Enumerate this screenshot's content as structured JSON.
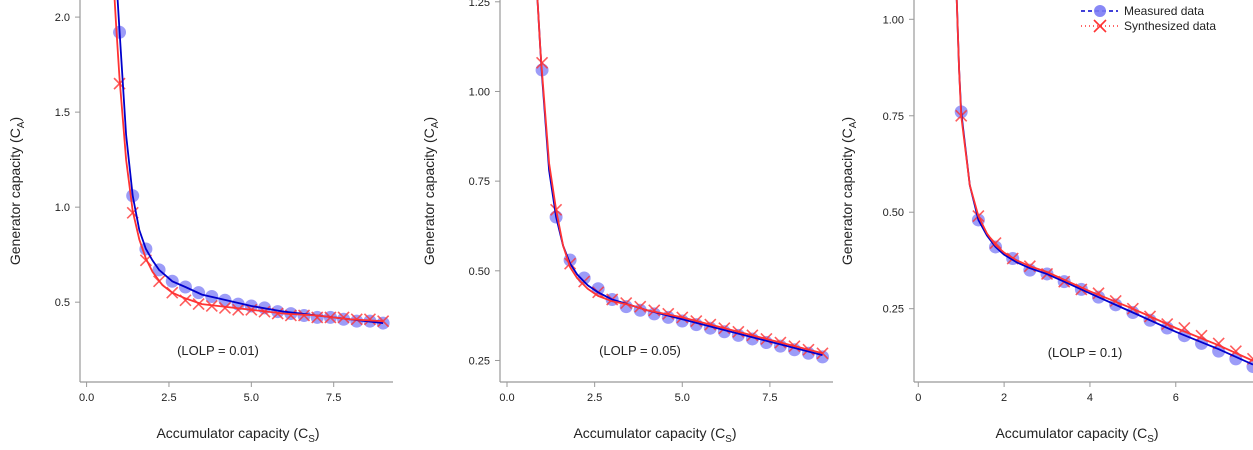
{
  "colors": {
    "measured_fit": "#0000cc",
    "measured_points": "#7b7bf5",
    "synthesized": "#ff3333",
    "axis": "#999999"
  },
  "legend": {
    "placement": "top-right",
    "entries": [
      "Measured data",
      "Synthesized data"
    ]
  },
  "chart_data": [
    {
      "type": "scatter",
      "xlabel": "Accumulator capacity (C",
      "xlabel_sub": "S",
      "xlabel_end": ")",
      "ylabel": "Generator capacity (C",
      "ylabel_sub": "A",
      "ylabel_end": ")",
      "annotation": "(LOLP = 0.01)",
      "xlim": [
        -0.2,
        9.3
      ],
      "ylim": [
        0.08,
        2.09
      ],
      "xticks": [
        0,
        2.5,
        5,
        7.5
      ],
      "xtick_labels": [
        "0.0",
        "2.5",
        "5.0",
        "7.5"
      ],
      "yticks": [
        0.5,
        1.0,
        1.5,
        2.0
      ],
      "ytick_labels": [
        "0.5",
        "1.0",
        "1.5",
        "2.0"
      ],
      "series": [
        {
          "name": "Measured data",
          "x": [
            1.0,
            1.4,
            1.8,
            2.2,
            2.6,
            3.0,
            3.4,
            3.8,
            4.2,
            4.6,
            5.0,
            5.4,
            5.8,
            6.2,
            6.6,
            7.0,
            7.4,
            7.8,
            8.2,
            8.6,
            9.0
          ],
          "y": [
            1.92,
            1.06,
            0.78,
            0.67,
            0.61,
            0.58,
            0.55,
            0.53,
            0.51,
            0.49,
            0.48,
            0.47,
            0.45,
            0.44,
            0.43,
            0.42,
            0.42,
            0.41,
            0.4,
            0.4,
            0.39
          ],
          "fit_x": [
            0.85,
            1.0,
            1.2,
            1.4,
            1.6,
            1.8,
            2.0,
            2.2,
            2.6,
            3.0,
            3.5,
            4.0,
            5.0,
            6.0,
            7.0,
            8.0,
            9.0
          ],
          "fit_y": [
            2.35,
            1.93,
            1.38,
            1.06,
            0.88,
            0.78,
            0.72,
            0.67,
            0.61,
            0.58,
            0.54,
            0.52,
            0.48,
            0.45,
            0.43,
            0.41,
            0.39
          ]
        },
        {
          "name": "Synthesized data",
          "x": [
            1.0,
            1.4,
            1.8,
            2.2,
            2.6,
            3.0,
            3.4,
            3.8,
            4.2,
            4.6,
            5.0,
            5.4,
            5.8,
            6.2,
            6.6,
            7.0,
            7.4,
            7.8,
            8.2,
            8.6,
            9.0
          ],
          "y": [
            1.65,
            0.97,
            0.72,
            0.61,
            0.55,
            0.51,
            0.49,
            0.48,
            0.47,
            0.46,
            0.46,
            0.45,
            0.44,
            0.43,
            0.43,
            0.42,
            0.42,
            0.42,
            0.41,
            0.41,
            0.4
          ],
          "fit_x": [
            0.78,
            0.9,
            1.0,
            1.2,
            1.4,
            1.6,
            1.8,
            2.0,
            2.3,
            2.6,
            3.0,
            3.5,
            4.0,
            5.0,
            6.0,
            7.0,
            8.0,
            9.0
          ],
          "fit_y": [
            2.3,
            1.95,
            1.68,
            1.25,
            0.98,
            0.83,
            0.73,
            0.66,
            0.59,
            0.55,
            0.52,
            0.49,
            0.48,
            0.46,
            0.44,
            0.43,
            0.41,
            0.4
          ]
        }
      ]
    },
    {
      "type": "scatter",
      "xlabel": "Accumulator capacity (C",
      "xlabel_sub": "S",
      "xlabel_end": ")",
      "ylabel": "Generator capacity (C",
      "ylabel_sub": "A",
      "ylabel_end": ")",
      "annotation": "(LOLP = 0.05)",
      "xlim": [
        -0.2,
        9.3
      ],
      "ylim": [
        0.19,
        1.255
      ],
      "xticks": [
        0,
        2.5,
        5,
        7.5
      ],
      "xtick_labels": [
        "0.0",
        "2.5",
        "5.0",
        "7.5"
      ],
      "yticks": [
        0.25,
        0.5,
        0.75,
        1.0,
        1.25
      ],
      "ytick_labels": [
        "0.25",
        "0.50",
        "0.75",
        "1.00",
        "1.25"
      ],
      "series": [
        {
          "name": "Measured data",
          "x": [
            1.0,
            1.4,
            1.8,
            2.2,
            2.6,
            3.0,
            3.4,
            3.8,
            4.2,
            4.6,
            5.0,
            5.4,
            5.8,
            6.2,
            6.6,
            7.0,
            7.4,
            7.8,
            8.2,
            8.6,
            9.0
          ],
          "y": [
            1.06,
            0.65,
            0.53,
            0.48,
            0.45,
            0.42,
            0.4,
            0.39,
            0.38,
            0.37,
            0.36,
            0.35,
            0.34,
            0.33,
            0.32,
            0.31,
            0.3,
            0.29,
            0.28,
            0.27,
            0.26
          ],
          "fit_x": [
            0.86,
            0.95,
            1.0,
            1.2,
            1.4,
            1.6,
            1.8,
            2.0,
            2.3,
            2.6,
            3.0,
            3.5,
            4.0,
            5.0,
            6.0,
            7.0,
            8.0,
            9.0
          ],
          "fit_y": [
            1.27,
            1.12,
            1.04,
            0.78,
            0.65,
            0.57,
            0.52,
            0.49,
            0.46,
            0.44,
            0.42,
            0.405,
            0.39,
            0.365,
            0.34,
            0.315,
            0.29,
            0.265
          ]
        },
        {
          "name": "Synthesized data",
          "x": [
            1.0,
            1.4,
            1.8,
            2.2,
            2.6,
            3.0,
            3.4,
            3.8,
            4.2,
            4.6,
            5.0,
            5.4,
            5.8,
            6.2,
            6.6,
            7.0,
            7.4,
            7.8,
            8.2,
            8.6,
            9.0
          ],
          "y": [
            1.08,
            0.67,
            0.52,
            0.47,
            0.44,
            0.42,
            0.41,
            0.4,
            0.39,
            0.38,
            0.37,
            0.36,
            0.35,
            0.34,
            0.33,
            0.32,
            0.31,
            0.3,
            0.29,
            0.28,
            0.27
          ],
          "fit_x": [
            0.86,
            0.95,
            1.0,
            1.2,
            1.4,
            1.6,
            1.8,
            2.0,
            2.3,
            2.6,
            3.0,
            3.5,
            4.0,
            5.0,
            6.0,
            7.0,
            8.0,
            9.0
          ],
          "fit_y": [
            1.27,
            1.12,
            1.05,
            0.8,
            0.67,
            0.57,
            0.51,
            0.48,
            0.45,
            0.43,
            0.415,
            0.405,
            0.39,
            0.37,
            0.345,
            0.32,
            0.295,
            0.27
          ]
        }
      ]
    },
    {
      "type": "scatter",
      "xlabel": "Accumulator capacity (C",
      "xlabel_sub": "S",
      "xlabel_end": ")",
      "ylabel": "Generator capacity (C",
      "ylabel_sub": "A",
      "ylabel_end": ")",
      "annotation": "(LOLP = 0.1)",
      "xlim": [
        -0.1,
        7.8
      ],
      "ylim": [
        0.06,
        1.05
      ],
      "xticks": [
        0,
        2,
        4,
        6
      ],
      "xtick_labels": [
        "0",
        "2",
        "4",
        "6"
      ],
      "yticks": [
        0.25,
        0.5,
        0.75,
        1.0
      ],
      "ytick_labels": [
        "0.25",
        "0.50",
        "0.75",
        "1.00"
      ],
      "series": [
        {
          "name": "Measured data",
          "x": [
            1.0,
            1.4,
            1.8,
            2.2,
            2.6,
            3.0,
            3.4,
            3.8,
            4.2,
            4.6,
            5.0,
            5.4,
            5.8,
            6.2,
            6.6,
            7.0,
            7.4,
            7.8
          ],
          "y": [
            0.76,
            0.48,
            0.41,
            0.38,
            0.35,
            0.34,
            0.32,
            0.3,
            0.28,
            0.26,
            0.24,
            0.22,
            0.2,
            0.18,
            0.16,
            0.14,
            0.12,
            0.1
          ],
          "fit_x": [
            0.88,
            0.95,
            1.0,
            1.2,
            1.4,
            1.6,
            1.8,
            2.0,
            2.3,
            2.6,
            3.0,
            3.5,
            4.0,
            5.0,
            6.0,
            7.0,
            7.8
          ],
          "fit_y": [
            1.1,
            0.87,
            0.76,
            0.57,
            0.48,
            0.44,
            0.41,
            0.39,
            0.37,
            0.355,
            0.34,
            0.315,
            0.29,
            0.24,
            0.19,
            0.145,
            0.105
          ]
        },
        {
          "name": "Synthesized data",
          "x": [
            1.0,
            1.4,
            1.8,
            2.2,
            2.6,
            3.0,
            3.4,
            3.8,
            4.2,
            4.6,
            5.0,
            5.4,
            5.8,
            6.2,
            6.6,
            7.0,
            7.4,
            7.8
          ],
          "y": [
            0.75,
            0.49,
            0.42,
            0.38,
            0.36,
            0.34,
            0.32,
            0.3,
            0.29,
            0.27,
            0.25,
            0.23,
            0.21,
            0.2,
            0.18,
            0.16,
            0.14,
            0.12
          ],
          "fit_x": [
            0.88,
            0.95,
            1.0,
            1.2,
            1.4,
            1.6,
            1.8,
            2.0,
            2.3,
            2.6,
            3.0,
            3.5,
            4.0,
            5.0,
            6.0,
            7.0,
            7.8
          ],
          "fit_y": [
            1.1,
            0.87,
            0.75,
            0.57,
            0.49,
            0.445,
            0.415,
            0.395,
            0.375,
            0.36,
            0.345,
            0.32,
            0.295,
            0.25,
            0.2,
            0.155,
            0.115
          ]
        }
      ]
    }
  ]
}
